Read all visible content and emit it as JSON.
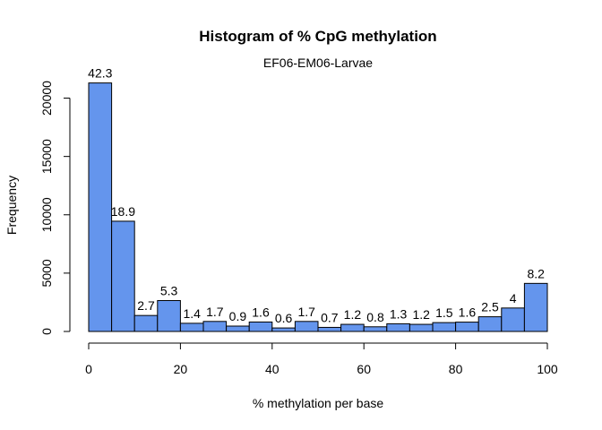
{
  "chart_data": {
    "type": "bar",
    "title": "Histogram of % CpG methylation",
    "subtitle": "EF06-EM06-Larvae",
    "xlabel": "% methylation per base",
    "ylabel": "Frequency",
    "xlim": [
      0,
      100
    ],
    "ylim": [
      0,
      21500
    ],
    "x_ticks": [
      0,
      20,
      40,
      60,
      80,
      100
    ],
    "y_ticks": [
      0,
      5000,
      10000,
      15000,
      20000
    ],
    "bin_width": 5,
    "bin_starts": [
      0,
      5,
      10,
      15,
      20,
      25,
      30,
      35,
      40,
      45,
      50,
      55,
      60,
      65,
      70,
      75,
      80,
      85,
      90,
      95
    ],
    "values": [
      21300,
      9450,
      1370,
      2650,
      700,
      860,
      460,
      810,
      300,
      860,
      350,
      610,
      400,
      660,
      610,
      760,
      800,
      1260,
      2010,
      4120
    ],
    "bar_labels": [
      "42.3",
      "18.9",
      "2.7",
      "5.3",
      "1.4",
      "1.7",
      "0.9",
      "1.6",
      "0.6",
      "1.7",
      "0.7",
      "1.2",
      "0.8",
      "1.3",
      "1.2",
      "1.5",
      "1.6",
      "2.5",
      "4",
      "8.2"
    ],
    "bar_color": "#6495ED",
    "bar_stroke": "#000000",
    "grid": false,
    "legend": "none"
  }
}
